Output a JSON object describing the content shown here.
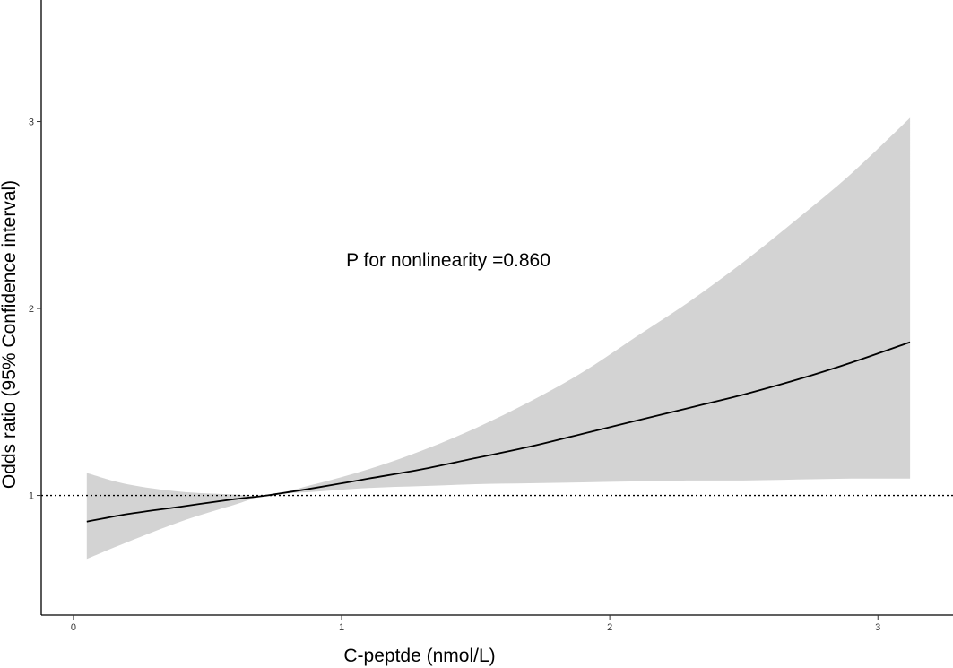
{
  "chart_data": {
    "type": "line",
    "title": "",
    "xlabel": "C-peptde (nmol/L)",
    "ylabel": "Odds ratio (95% Confidence interval)",
    "xlim": [
      -0.12,
      3.28
    ],
    "ylim": [
      0.36,
      3.65
    ],
    "x_ticks": [
      0,
      1,
      2,
      3
    ],
    "y_ticks": [
      1,
      2,
      3
    ],
    "grid": false,
    "legend": "none",
    "reference_line": {
      "y": 1,
      "style": "dotted"
    },
    "annotation": "P for nonlinearity =0.860",
    "series": [
      {
        "style": "solid",
        "x": [
          0.05,
          0.2,
          0.4,
          0.6,
          0.72,
          0.9,
          1.1,
          1.3,
          1.5,
          1.7,
          1.9,
          2.1,
          2.3,
          2.5,
          2.7,
          2.9,
          3.12
        ],
        "y": [
          0.86,
          0.9,
          0.94,
          0.98,
          1.0,
          1.04,
          1.09,
          1.14,
          1.2,
          1.26,
          1.33,
          1.4,
          1.47,
          1.54,
          1.62,
          1.71,
          1.82
        ],
        "lower": [
          0.66,
          0.75,
          0.86,
          0.95,
          1.0,
          1.02,
          1.04,
          1.05,
          1.06,
          1.065,
          1.07,
          1.075,
          1.08,
          1.08,
          1.085,
          1.09,
          1.09
        ],
        "upper": [
          1.12,
          1.06,
          1.02,
          1.005,
          1.0,
          1.06,
          1.14,
          1.24,
          1.36,
          1.5,
          1.66,
          1.85,
          2.04,
          2.25,
          2.48,
          2.72,
          3.02
        ]
      }
    ],
    "colors": {
      "ci_band": "#d3d3d3",
      "line": "#000000",
      "axis": "#000000"
    }
  }
}
